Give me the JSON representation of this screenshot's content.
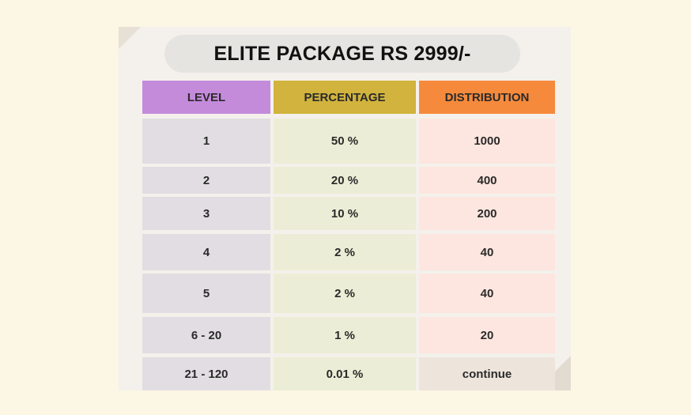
{
  "title": "ELITE PACKAGE RS 2999/-",
  "headers": {
    "level": "LEVEL",
    "percentage": "PERCENTAGE",
    "distribution": "DISTRIBUTION"
  },
  "rows": [
    {
      "level": "1",
      "percentage": "50 %",
      "distribution": "1000"
    },
    {
      "level": "2",
      "percentage": "20 %",
      "distribution": "400"
    },
    {
      "level": "3",
      "percentage": "10 %",
      "distribution": "200"
    },
    {
      "level": "4",
      "percentage": "2 %",
      "distribution": "40"
    },
    {
      "level": "5",
      "percentage": "2 %",
      "distribution": "40"
    },
    {
      "level": "6 - 20",
      "percentage": "1 %",
      "distribution": "20"
    },
    {
      "level": "21 - 120",
      "percentage": "0.01 %",
      "distribution": "continue"
    }
  ],
  "colors": {
    "page_background": "#fcf6e4",
    "card_background": "#f4f1ec",
    "level_header": "#c48bdb",
    "percentage_header": "#d1b33d",
    "distribution_header": "#f68a3c",
    "level_cell": "#e1dde2",
    "percentage_cell": "#ecedd6",
    "distribution_cell": "#fde6df"
  }
}
